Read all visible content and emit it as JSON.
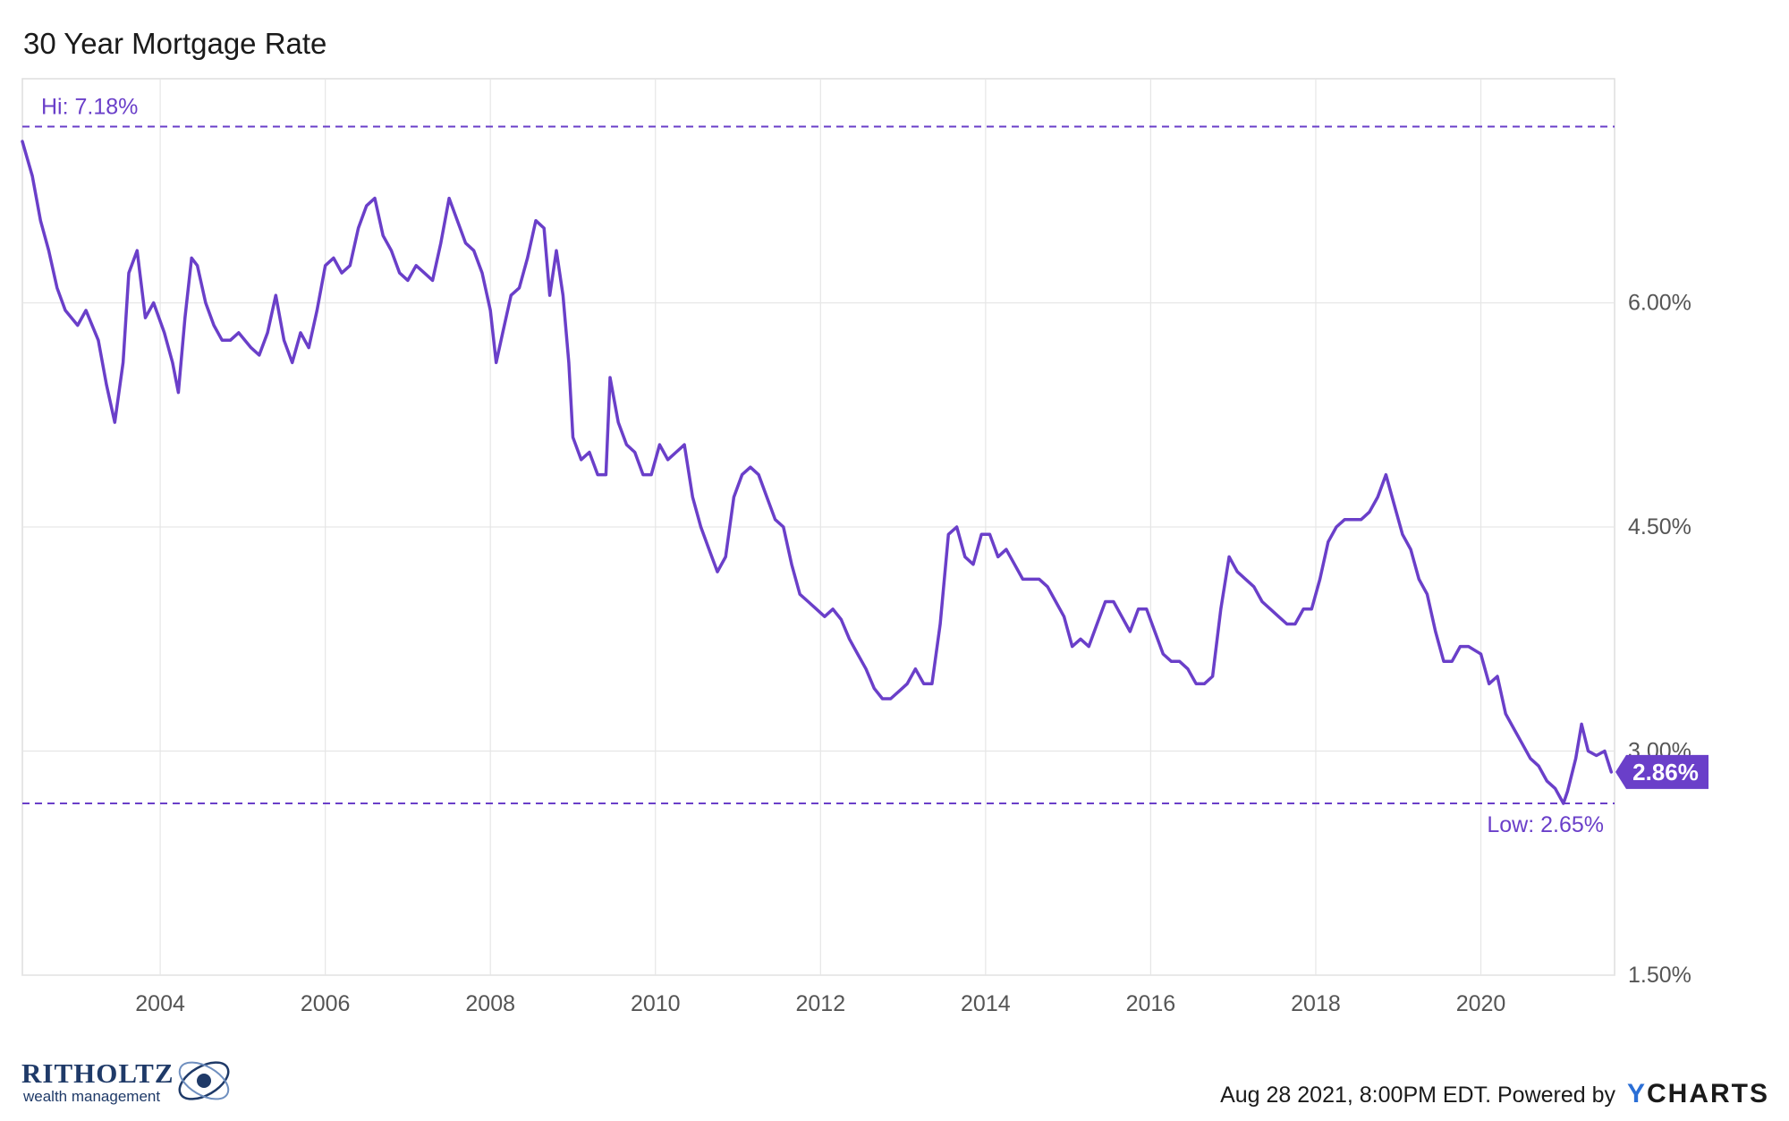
{
  "chart_data": {
    "type": "line",
    "title": "30 Year Mortgage Rate",
    "x_axis": {
      "ticks": [
        "2004",
        "2006",
        "2008",
        "2010",
        "2012",
        "2014",
        "2016",
        "2018",
        "2020"
      ]
    },
    "y_axis": {
      "ticks": [
        "1.50%",
        "3.00%",
        "4.50%",
        "6.00%"
      ],
      "ylim": [
        1.5,
        7.5
      ]
    },
    "grid": true,
    "series": [
      {
        "color": "#6a3fc9",
        "points": [
          [
            2002.33,
            7.08
          ],
          [
            2002.45,
            6.85
          ],
          [
            2002.55,
            6.55
          ],
          [
            2002.65,
            6.35
          ],
          [
            2002.75,
            6.1
          ],
          [
            2002.85,
            5.95
          ],
          [
            2003.0,
            5.85
          ],
          [
            2003.1,
            5.95
          ],
          [
            2003.25,
            5.75
          ],
          [
            2003.35,
            5.45
          ],
          [
            2003.45,
            5.2
          ],
          [
            2003.55,
            5.6
          ],
          [
            2003.62,
            6.2
          ],
          [
            2003.72,
            6.35
          ],
          [
            2003.82,
            5.9
          ],
          [
            2003.92,
            6.0
          ],
          [
            2004.05,
            5.8
          ],
          [
            2004.15,
            5.6
          ],
          [
            2004.22,
            5.4
          ],
          [
            2004.3,
            5.9
          ],
          [
            2004.38,
            6.3
          ],
          [
            2004.45,
            6.25
          ],
          [
            2004.55,
            6.0
          ],
          [
            2004.65,
            5.85
          ],
          [
            2004.75,
            5.75
          ],
          [
            2004.85,
            5.75
          ],
          [
            2004.95,
            5.8
          ],
          [
            2005.1,
            5.7
          ],
          [
            2005.2,
            5.65
          ],
          [
            2005.3,
            5.8
          ],
          [
            2005.4,
            6.05
          ],
          [
            2005.5,
            5.75
          ],
          [
            2005.6,
            5.6
          ],
          [
            2005.7,
            5.8
          ],
          [
            2005.8,
            5.7
          ],
          [
            2005.9,
            5.95
          ],
          [
            2006.0,
            6.25
          ],
          [
            2006.1,
            6.3
          ],
          [
            2006.2,
            6.2
          ],
          [
            2006.3,
            6.25
          ],
          [
            2006.4,
            6.5
          ],
          [
            2006.5,
            6.65
          ],
          [
            2006.6,
            6.7
          ],
          [
            2006.7,
            6.45
          ],
          [
            2006.8,
            6.35
          ],
          [
            2006.9,
            6.2
          ],
          [
            2007.0,
            6.15
          ],
          [
            2007.1,
            6.25
          ],
          [
            2007.2,
            6.2
          ],
          [
            2007.3,
            6.15
          ],
          [
            2007.4,
            6.4
          ],
          [
            2007.5,
            6.7
          ],
          [
            2007.6,
            6.55
          ],
          [
            2007.7,
            6.4
          ],
          [
            2007.8,
            6.35
          ],
          [
            2007.9,
            6.2
          ],
          [
            2008.0,
            5.95
          ],
          [
            2008.07,
            5.6
          ],
          [
            2008.15,
            5.8
          ],
          [
            2008.25,
            6.05
          ],
          [
            2008.35,
            6.1
          ],
          [
            2008.45,
            6.3
          ],
          [
            2008.55,
            6.55
          ],
          [
            2008.65,
            6.5
          ],
          [
            2008.72,
            6.05
          ],
          [
            2008.8,
            6.35
          ],
          [
            2008.88,
            6.05
          ],
          [
            2008.95,
            5.6
          ],
          [
            2009.0,
            5.1
          ],
          [
            2009.1,
            4.95
          ],
          [
            2009.2,
            5.0
          ],
          [
            2009.3,
            4.85
          ],
          [
            2009.4,
            4.85
          ],
          [
            2009.45,
            5.5
          ],
          [
            2009.55,
            5.2
          ],
          [
            2009.65,
            5.05
          ],
          [
            2009.75,
            5.0
          ],
          [
            2009.85,
            4.85
          ],
          [
            2009.95,
            4.85
          ],
          [
            2010.05,
            5.05
          ],
          [
            2010.15,
            4.95
          ],
          [
            2010.25,
            5.0
          ],
          [
            2010.35,
            5.05
          ],
          [
            2010.45,
            4.7
          ],
          [
            2010.55,
            4.5
          ],
          [
            2010.65,
            4.35
          ],
          [
            2010.75,
            4.2
          ],
          [
            2010.85,
            4.3
          ],
          [
            2010.95,
            4.7
          ],
          [
            2011.05,
            4.85
          ],
          [
            2011.15,
            4.9
          ],
          [
            2011.25,
            4.85
          ],
          [
            2011.35,
            4.7
          ],
          [
            2011.45,
            4.55
          ],
          [
            2011.55,
            4.5
          ],
          [
            2011.65,
            4.25
          ],
          [
            2011.75,
            4.05
          ],
          [
            2011.85,
            4.0
          ],
          [
            2011.95,
            3.95
          ],
          [
            2012.05,
            3.9
          ],
          [
            2012.15,
            3.95
          ],
          [
            2012.25,
            3.88
          ],
          [
            2012.35,
            3.75
          ],
          [
            2012.45,
            3.65
          ],
          [
            2012.55,
            3.55
          ],
          [
            2012.65,
            3.42
          ],
          [
            2012.75,
            3.35
          ],
          [
            2012.85,
            3.35
          ],
          [
            2012.95,
            3.4
          ],
          [
            2013.05,
            3.45
          ],
          [
            2013.15,
            3.55
          ],
          [
            2013.25,
            3.45
          ],
          [
            2013.35,
            3.45
          ],
          [
            2013.45,
            3.85
          ],
          [
            2013.55,
            4.45
          ],
          [
            2013.65,
            4.5
          ],
          [
            2013.75,
            4.3
          ],
          [
            2013.85,
            4.25
          ],
          [
            2013.95,
            4.45
          ],
          [
            2014.05,
            4.45
          ],
          [
            2014.15,
            4.3
          ],
          [
            2014.25,
            4.35
          ],
          [
            2014.35,
            4.25
          ],
          [
            2014.45,
            4.15
          ],
          [
            2014.55,
            4.15
          ],
          [
            2014.65,
            4.15
          ],
          [
            2014.75,
            4.1
          ],
          [
            2014.85,
            4.0
          ],
          [
            2014.95,
            3.9
          ],
          [
            2015.05,
            3.7
          ],
          [
            2015.15,
            3.75
          ],
          [
            2015.25,
            3.7
          ],
          [
            2015.35,
            3.85
          ],
          [
            2015.45,
            4.0
          ],
          [
            2015.55,
            4.0
          ],
          [
            2015.65,
            3.9
          ],
          [
            2015.75,
            3.8
          ],
          [
            2015.85,
            3.95
          ],
          [
            2015.95,
            3.95
          ],
          [
            2016.05,
            3.8
          ],
          [
            2016.15,
            3.65
          ],
          [
            2016.25,
            3.6
          ],
          [
            2016.35,
            3.6
          ],
          [
            2016.45,
            3.55
          ],
          [
            2016.55,
            3.45
          ],
          [
            2016.65,
            3.45
          ],
          [
            2016.75,
            3.5
          ],
          [
            2016.85,
            3.95
          ],
          [
            2016.95,
            4.3
          ],
          [
            2017.05,
            4.2
          ],
          [
            2017.15,
            4.15
          ],
          [
            2017.25,
            4.1
          ],
          [
            2017.35,
            4.0
          ],
          [
            2017.45,
            3.95
          ],
          [
            2017.55,
            3.9
          ],
          [
            2017.65,
            3.85
          ],
          [
            2017.75,
            3.85
          ],
          [
            2017.85,
            3.95
          ],
          [
            2017.95,
            3.95
          ],
          [
            2018.05,
            4.15
          ],
          [
            2018.15,
            4.4
          ],
          [
            2018.25,
            4.5
          ],
          [
            2018.35,
            4.55
          ],
          [
            2018.45,
            4.55
          ],
          [
            2018.55,
            4.55
          ],
          [
            2018.65,
            4.6
          ],
          [
            2018.75,
            4.7
          ],
          [
            2018.85,
            4.85
          ],
          [
            2018.95,
            4.65
          ],
          [
            2019.05,
            4.45
          ],
          [
            2019.15,
            4.35
          ],
          [
            2019.25,
            4.15
          ],
          [
            2019.35,
            4.05
          ],
          [
            2019.45,
            3.8
          ],
          [
            2019.55,
            3.6
          ],
          [
            2019.65,
            3.6
          ],
          [
            2019.75,
            3.7
          ],
          [
            2019.85,
            3.7
          ],
          [
            2020.0,
            3.65
          ],
          [
            2020.1,
            3.45
          ],
          [
            2020.2,
            3.5
          ],
          [
            2020.3,
            3.25
          ],
          [
            2020.4,
            3.15
          ],
          [
            2020.5,
            3.05
          ],
          [
            2020.6,
            2.95
          ],
          [
            2020.7,
            2.9
          ],
          [
            2020.8,
            2.8
          ],
          [
            2020.9,
            2.75
          ],
          [
            2021.0,
            2.65
          ],
          [
            2021.05,
            2.73
          ],
          [
            2021.15,
            2.95
          ],
          [
            2021.22,
            3.18
          ],
          [
            2021.3,
            3.0
          ],
          [
            2021.4,
            2.97
          ],
          [
            2021.5,
            3.0
          ],
          [
            2021.58,
            2.86
          ]
        ]
      }
    ],
    "reference_lines": [
      {
        "label": "Hi: 7.18%",
        "value": 7.18
      },
      {
        "label": "Low: 2.65%",
        "value": 2.65
      }
    ],
    "last_value": {
      "label": "2.86%",
      "value": 2.86
    }
  },
  "footer": {
    "brand_name": "RITHOLTZ",
    "brand_tagline": "wealth management",
    "credit": "Aug 28 2021, 8:00PM EDT. Powered by",
    "ycharts_y": "Y",
    "ycharts_rest": "CHARTS"
  }
}
